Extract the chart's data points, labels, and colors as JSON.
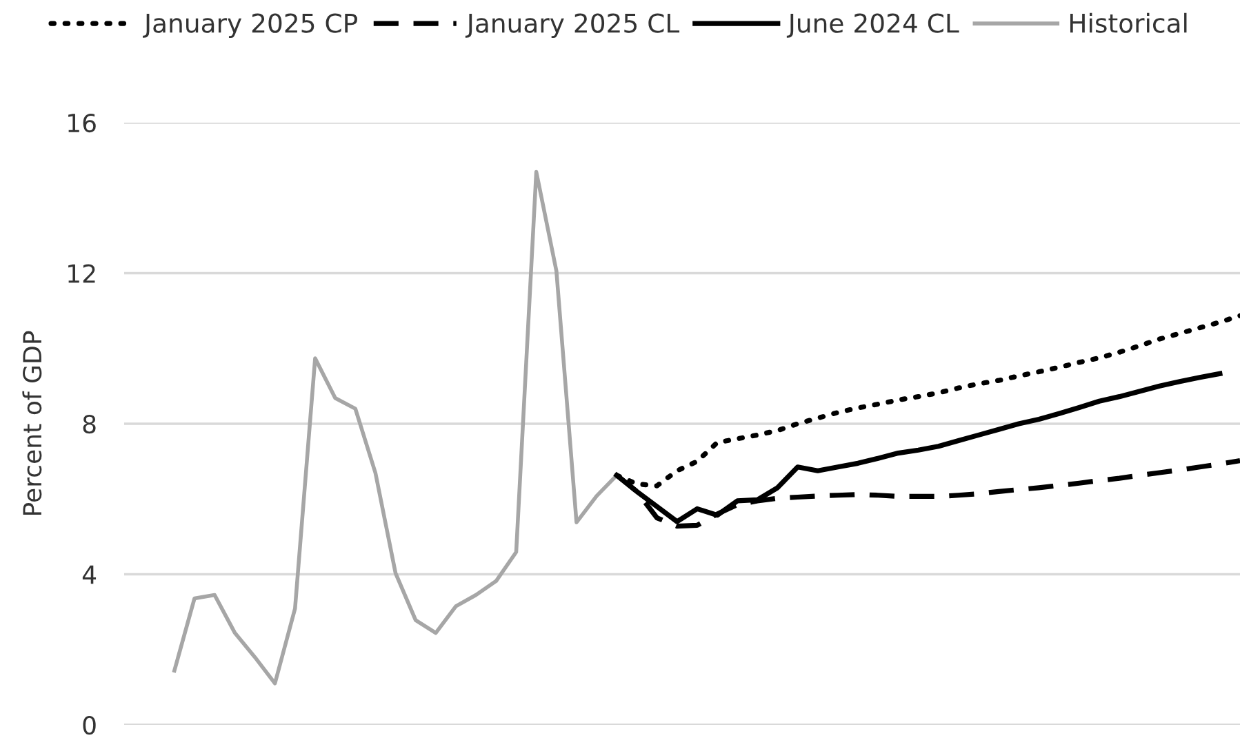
{
  "chart_data": {
    "type": "line",
    "ylabel": "Percent of GDP",
    "categories": [
      null,
      null,
      null,
      null,
      null,
      null,
      null,
      null,
      null,
      null,
      null,
      null,
      null,
      null,
      null,
      null,
      null,
      null,
      null,
      null,
      null,
      null,
      null,
      null,
      null,
      null,
      null,
      null,
      null,
      null,
      null,
      null,
      null,
      null,
      null,
      null,
      null,
      null,
      null,
      null,
      null,
      null,
      null,
      null,
      null,
      null,
      null,
      null,
      null,
      null,
      null,
      null,
      null,
      null,
      null
    ],
    "ylim": [
      0,
      16
    ],
    "yticks": [
      0,
      4,
      8,
      12,
      16
    ],
    "grid": "y",
    "legend": "top",
    "marker": "none",
    "series": [
      {
        "name": "January 2025 CP",
        "color": "#000000",
        "line_style": "dotted",
        "values": [
          null,
          null,
          null,
          null,
          null,
          null,
          null,
          null,
          null,
          null,
          null,
          null,
          null,
          null,
          null,
          null,
          null,
          null,
          null,
          null,
          null,
          null,
          null,
          6.63,
          6.4,
          6.35,
          6.75,
          7.0,
          7.5,
          7.6,
          7.7,
          7.82,
          8.0,
          8.15,
          8.3,
          8.42,
          8.52,
          8.63,
          8.72,
          8.82,
          8.95,
          9.06,
          9.15,
          9.27,
          9.38,
          9.5,
          9.63,
          9.75,
          9.9,
          10.07,
          10.25,
          10.4,
          10.55,
          10.7,
          10.87
        ]
      },
      {
        "name": "January 2025 CL",
        "color": "#000000",
        "line_style": "dashed",
        "values": [
          null,
          null,
          null,
          null,
          null,
          null,
          null,
          null,
          null,
          null,
          null,
          null,
          null,
          null,
          null,
          null,
          null,
          null,
          null,
          null,
          null,
          null,
          null,
          6.63,
          6.2,
          5.5,
          5.28,
          5.3,
          5.6,
          5.85,
          5.95,
          6.02,
          6.05,
          6.08,
          6.1,
          6.12,
          6.1,
          6.07,
          6.07,
          6.07,
          6.1,
          6.14,
          6.2,
          6.25,
          6.3,
          6.36,
          6.42,
          6.49,
          6.55,
          6.63,
          6.7,
          6.77,
          6.85,
          6.93,
          7.02
        ]
      },
      {
        "name": "June 2024 CL",
        "color": "#000000",
        "line_style": "solid",
        "values": [
          null,
          null,
          null,
          null,
          null,
          null,
          null,
          null,
          null,
          null,
          null,
          null,
          null,
          null,
          null,
          null,
          null,
          null,
          null,
          null,
          null,
          null,
          null,
          6.63,
          6.2,
          5.8,
          5.4,
          5.74,
          5.57,
          5.95,
          5.98,
          6.3,
          6.85,
          6.75,
          6.85,
          6.95,
          7.08,
          7.22,
          7.3,
          7.4,
          7.55,
          7.7,
          7.85,
          8.0,
          8.12,
          8.27,
          8.43,
          8.6,
          8.72,
          8.86,
          9.0,
          9.12,
          9.23,
          9.33,
          null
        ]
      },
      {
        "name": "Historical",
        "color": "#a6a6a6",
        "line_style": "solid",
        "values": [
          null,
          1.44,
          3.36,
          3.45,
          2.45,
          1.8,
          1.1,
          3.09,
          9.74,
          8.68,
          8.4,
          6.69,
          4.03,
          2.78,
          2.44,
          3.15,
          3.45,
          3.82,
          4.59,
          14.69,
          12.06,
          5.38,
          6.08,
          6.63,
          null,
          null,
          null,
          null,
          null,
          null,
          null,
          null,
          null,
          null,
          null,
          null,
          null,
          null,
          null,
          null,
          null,
          null,
          null,
          null,
          null,
          null,
          null,
          null,
          null,
          null,
          null,
          null,
          null,
          null,
          null
        ]
      }
    ]
  }
}
